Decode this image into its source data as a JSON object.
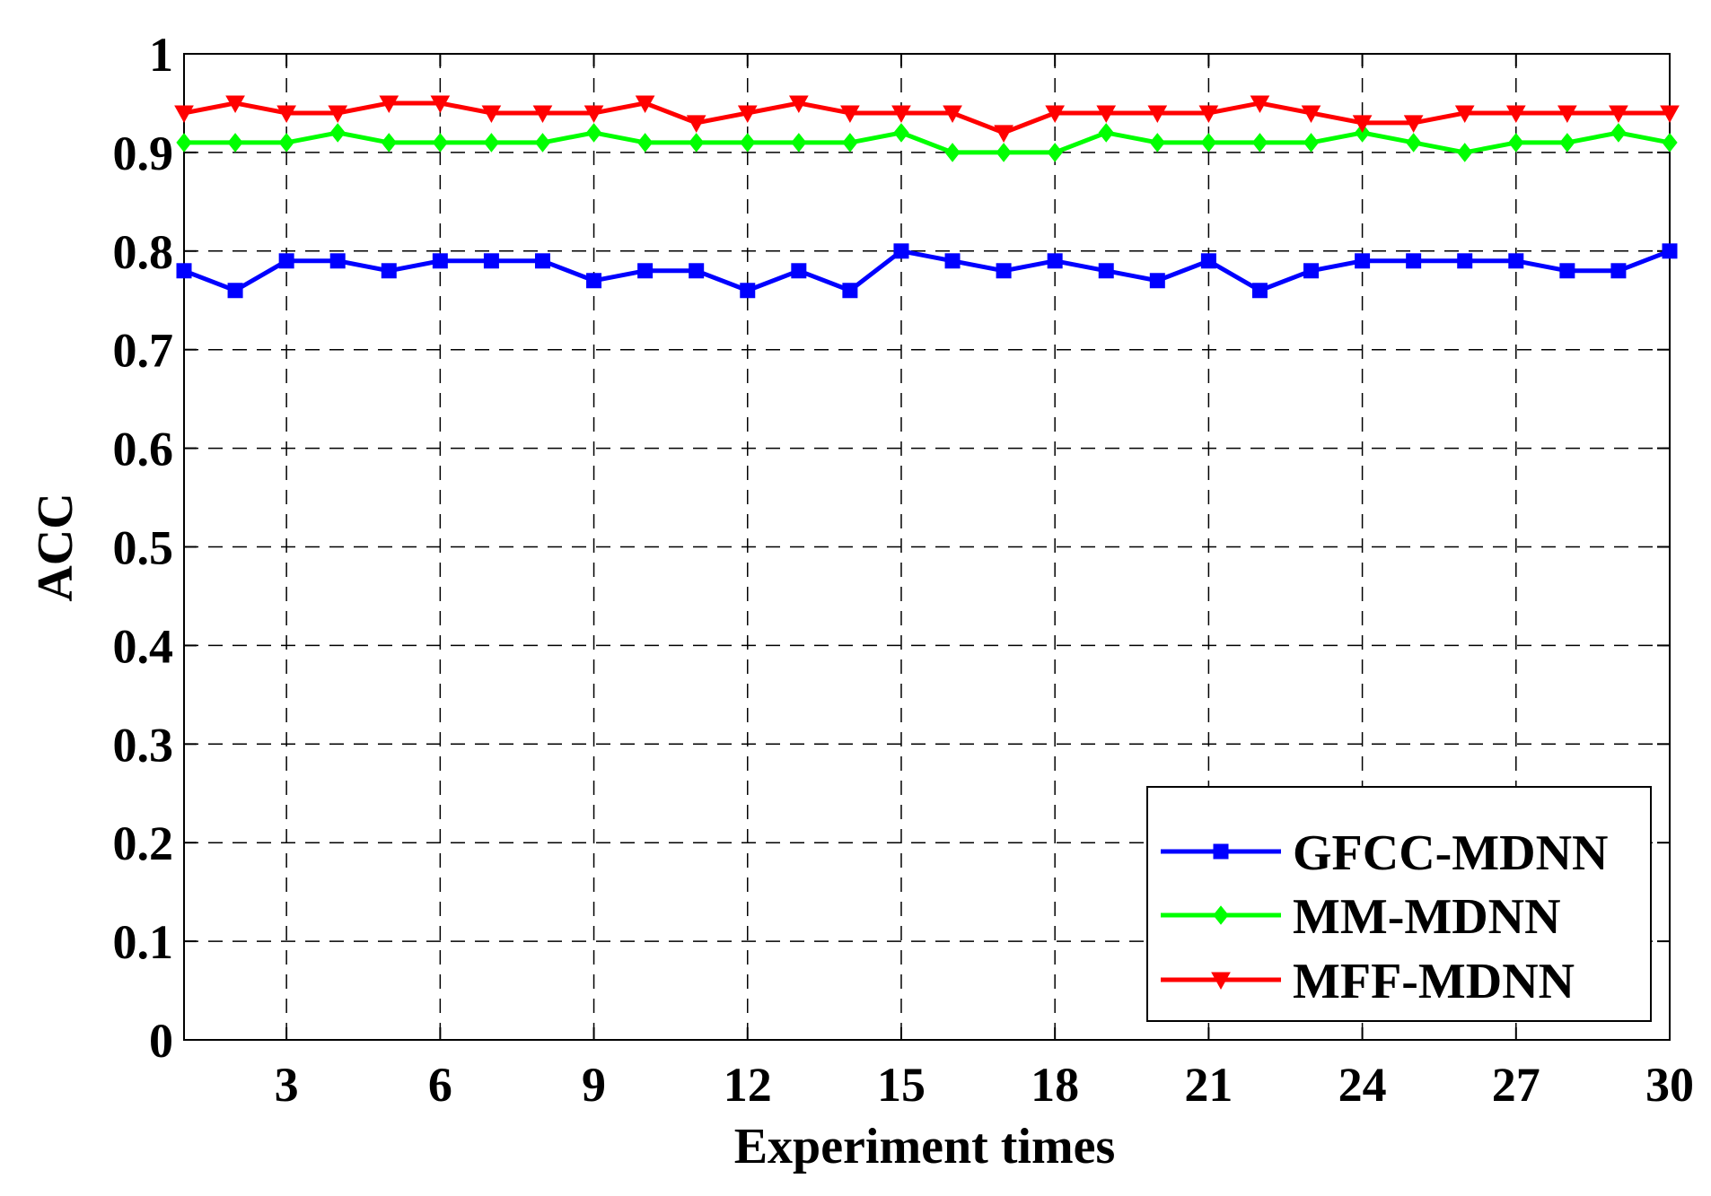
{
  "chart_data": {
    "type": "line",
    "title": "",
    "xlabel": "Experiment times",
    "ylabel": "ACC",
    "xlim": [
      1,
      30
    ],
    "ylim": [
      0,
      1
    ],
    "xticks": [
      3,
      6,
      9,
      12,
      15,
      18,
      21,
      24,
      27,
      30
    ],
    "xtick_labels": [
      "3",
      "6",
      "9",
      "12",
      "15",
      "18",
      "21",
      "24",
      "27",
      "30"
    ],
    "yticks": [
      0,
      0.1,
      0.2,
      0.3,
      0.4,
      0.5,
      0.6,
      0.7,
      0.8,
      0.9,
      1
    ],
    "ytick_labels": [
      "0",
      "0.1",
      "0.2",
      "0.3",
      "0.4",
      "0.5",
      "0.6",
      "0.7",
      "0.8",
      "0.9",
      "1"
    ],
    "grid": true,
    "legend_position": "bottom-right",
    "x": [
      1,
      2,
      3,
      4,
      5,
      6,
      7,
      8,
      9,
      10,
      11,
      12,
      13,
      14,
      15,
      16,
      17,
      18,
      19,
      20,
      21,
      22,
      23,
      24,
      25,
      26,
      27,
      28,
      29,
      30
    ],
    "series": [
      {
        "name": "GFCC-MDNN",
        "color": "#0000ff",
        "marker": "square",
        "values": [
          0.78,
          0.76,
          0.79,
          0.79,
          0.78,
          0.79,
          0.79,
          0.79,
          0.77,
          0.78,
          0.78,
          0.76,
          0.78,
          0.76,
          0.8,
          0.79,
          0.78,
          0.79,
          0.78,
          0.77,
          0.79,
          0.76,
          0.78,
          0.79,
          0.79,
          0.79,
          0.79,
          0.78,
          0.78,
          0.8
        ]
      },
      {
        "name": "MM-MDNN",
        "color": "#00ff00",
        "marker": "diamond",
        "values": [
          0.91,
          0.91,
          0.91,
          0.92,
          0.91,
          0.91,
          0.91,
          0.91,
          0.92,
          0.91,
          0.91,
          0.91,
          0.91,
          0.91,
          0.92,
          0.9,
          0.9,
          0.9,
          0.92,
          0.91,
          0.91,
          0.91,
          0.91,
          0.92,
          0.91,
          0.9,
          0.91,
          0.91,
          0.92,
          0.91
        ]
      },
      {
        "name": "MFF-MDNN",
        "color": "#ff0000",
        "marker": "triangle-down",
        "values": [
          0.94,
          0.95,
          0.94,
          0.94,
          0.95,
          0.95,
          0.94,
          0.94,
          0.94,
          0.95,
          0.93,
          0.94,
          0.95,
          0.94,
          0.94,
          0.94,
          0.92,
          0.94,
          0.94,
          0.94,
          0.94,
          0.95,
          0.94,
          0.93,
          0.93,
          0.94,
          0.94,
          0.94,
          0.94,
          0.94
        ]
      }
    ]
  }
}
